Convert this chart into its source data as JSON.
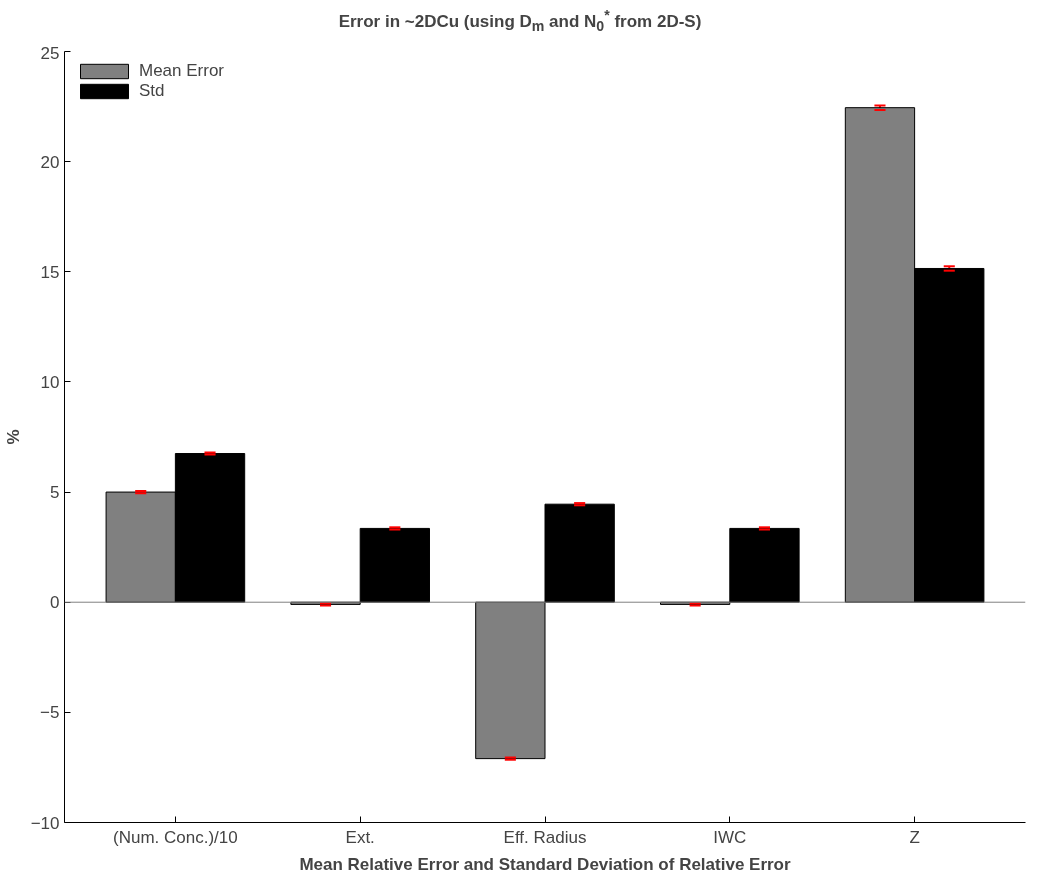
{
  "chart_data": {
    "type": "bar",
    "title": "Error in ~2DCu (using D$_{m}$ and N$_{0}$$^{*}$ from 2D-S)",
    "xlabel": "Mean Relative Error and Standard Deviation of Relative Error",
    "ylabel": "%",
    "categories": [
      "(Num. Conc.)/10",
      "Ext.",
      "Eff. Radius",
      "IWC",
      "Z"
    ],
    "series": [
      {
        "name": "Mean Error",
        "color": "#808080",
        "values": [
          5.0,
          -0.1,
          -7.1,
          -0.1,
          22.45
        ],
        "errors": [
          0.05,
          0.05,
          0.05,
          0.05,
          0.1
        ]
      },
      {
        "name": "Std",
        "color": "#000000",
        "values": [
          6.75,
          3.35,
          4.45,
          3.35,
          15.15
        ],
        "errors": [
          0.05,
          0.05,
          0.05,
          0.05,
          0.1
        ]
      }
    ],
    "ylim": [
      -10,
      25
    ],
    "yticks": [
      -10,
      -5,
      0,
      5,
      10,
      15,
      20,
      25
    ],
    "ref_lines": [
      {
        "axis": "y",
        "value": 0,
        "color": "#808080"
      }
    ],
    "grid": false,
    "legend": "top left"
  }
}
